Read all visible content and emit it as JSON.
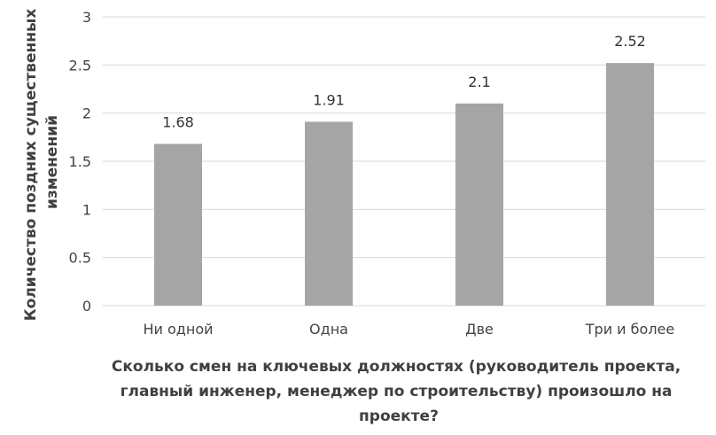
{
  "chart_data": {
    "type": "bar",
    "categories": [
      "Ни одной",
      "Одна",
      "Две",
      "Три и более"
    ],
    "values": [
      1.68,
      1.91,
      2.1,
      2.52
    ],
    "data_labels": [
      "1.68",
      "1.91",
      "2.1",
      "2.52"
    ],
    "y_ticks": [
      "0",
      "0.5",
      "1",
      "1.5",
      "2",
      "2.5",
      "3"
    ],
    "ylim": [
      0,
      3
    ],
    "ylabel_lines": [
      "Количество поздних существенных",
      "изменений"
    ],
    "xlabel_lines": [
      "Сколько смен на ключевых должностях (руководитель проекта,",
      "главный инженер, менеджер по строительству)  произошло на",
      "проекте?"
    ],
    "grid": true,
    "legend": "none",
    "bar_color": "#a5a5a5",
    "grid_color": "#d9d9d9"
  }
}
